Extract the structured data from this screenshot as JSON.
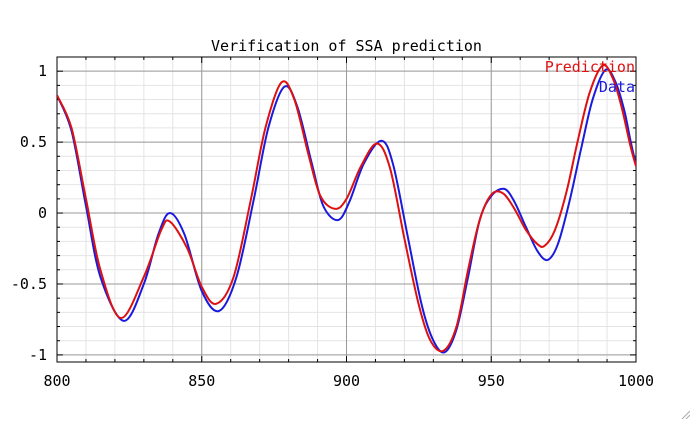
{
  "chart_data": {
    "type": "line",
    "title": "Verification of SSA prediction",
    "xlabel": "",
    "ylabel": "",
    "xlim": [
      800,
      1000
    ],
    "ylim": [
      -1.05,
      1.1
    ],
    "xticks": [
      800,
      850,
      900,
      950,
      1000
    ],
    "xtick_labels": [
      "800",
      "850",
      "900",
      "950",
      "1000"
    ],
    "yticks": [
      1,
      0.5,
      0,
      -0.5,
      -1
    ],
    "ytick_labels": [
      "1",
      "0.5",
      "0",
      "-0.5",
      "-1"
    ],
    "grid": true,
    "minor_grid": true,
    "legend_position": "top-right",
    "series": [
      {
        "name": "Prediction",
        "color": "#dd1111",
        "x": [
          800,
          805,
          810,
          815,
          822,
          830,
          836,
          839,
          845,
          850,
          855,
          861,
          867,
          872,
          877.5,
          882,
          887,
          891,
          896,
          900,
          905,
          910.5,
          915,
          920,
          925,
          929,
          933.5,
          938,
          942,
          946,
          950,
          954,
          958,
          962,
          966,
          968.5,
          972,
          976,
          980,
          984,
          988.5,
          992,
          995,
          998,
          1000
        ],
        "y": [
          0.83,
          0.6,
          0.1,
          -0.4,
          -0.74,
          -0.45,
          -0.12,
          -0.06,
          -0.25,
          -0.52,
          -0.64,
          -0.45,
          0.1,
          0.6,
          0.92,
          0.8,
          0.4,
          0.12,
          0.03,
          0.1,
          0.33,
          0.49,
          0.32,
          -0.18,
          -0.65,
          -0.9,
          -0.97,
          -0.8,
          -0.4,
          -0.05,
          0.13,
          0.14,
          0.03,
          -0.12,
          -0.22,
          -0.23,
          -0.12,
          0.15,
          0.52,
          0.85,
          1.04,
          0.95,
          0.75,
          0.48,
          0.33
        ]
      },
      {
        "name": "Data",
        "color": "#1a1add",
        "x": [
          800,
          805,
          810,
          815,
          823,
          830,
          835,
          839,
          844,
          850,
          856,
          862,
          868,
          873,
          878.5,
          883,
          888,
          892,
          897,
          901,
          906,
          912,
          916,
          921,
          926,
          930,
          934,
          938,
          942,
          946,
          950,
          954.5,
          958,
          962,
          966,
          969.5,
          973,
          977,
          981,
          985,
          989.5,
          993,
          996,
          998,
          1000
        ],
        "y": [
          0.83,
          0.58,
          0.05,
          -0.45,
          -0.76,
          -0.5,
          -0.15,
          0.0,
          -0.15,
          -0.55,
          -0.69,
          -0.45,
          0.1,
          0.6,
          0.89,
          0.75,
          0.35,
          0.05,
          -0.05,
          0.08,
          0.35,
          0.51,
          0.35,
          -0.15,
          -0.65,
          -0.9,
          -0.98,
          -0.82,
          -0.45,
          -0.05,
          0.12,
          0.17,
          0.08,
          -0.1,
          -0.27,
          -0.33,
          -0.22,
          0.08,
          0.45,
          0.8,
          1.01,
          0.92,
          0.72,
          0.52,
          0.34
        ]
      }
    ]
  }
}
